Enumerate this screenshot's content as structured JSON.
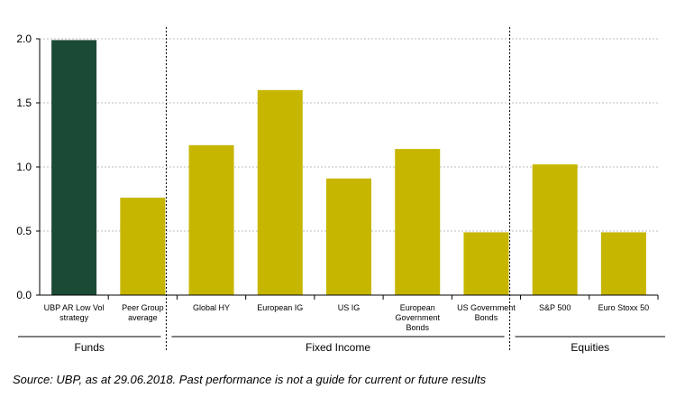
{
  "chart_data": {
    "type": "bar",
    "categories": [
      "UBP AR Low Vol strategy",
      "Peer Group average",
      "Global HY",
      "European IG",
      "US IG",
      "European Government Bonds",
      "US Government Bonds",
      "S&P 500",
      "Euro Stoxx 50"
    ],
    "values": [
      1.99,
      0.76,
      1.17,
      1.6,
      0.91,
      1.14,
      0.49,
      1.02,
      0.49
    ],
    "bar_colors": [
      "#1b4a35",
      "#c6b600",
      "#c6b600",
      "#c6b600",
      "#c6b600",
      "#c6b600",
      "#c6b600",
      "#c6b600",
      "#c6b600"
    ],
    "ylim": [
      0,
      2.0
    ],
    "yticks": [
      "0.0",
      "0.5",
      "1.0",
      "1.5",
      "2.0"
    ],
    "grid": true,
    "groups": [
      {
        "label": "Funds",
        "start": 0,
        "end": 1
      },
      {
        "label": "Fixed Income",
        "start": 2,
        "end": 6
      },
      {
        "label": "Equities",
        "start": 7,
        "end": 8
      }
    ],
    "category_label_lines": [
      [
        "UBP AR Low Vol",
        "strategy"
      ],
      [
        "Peer Group",
        "average"
      ],
      [
        "Global HY"
      ],
      [
        "European IG"
      ],
      [
        "US IG"
      ],
      [
        "European",
        "Government",
        "Bonds"
      ],
      [
        "US Government",
        "Bonds"
      ],
      [
        "S&P 500"
      ],
      [
        "Euro Stoxx 50"
      ]
    ]
  },
  "source_note": "Source: UBP, as at 29.06.2018. Past performance is not a guide for current or future results"
}
